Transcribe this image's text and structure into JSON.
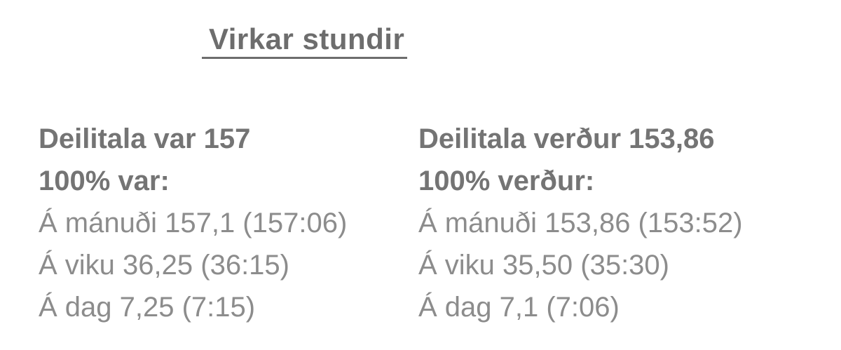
{
  "title": "Virkar stundir",
  "columns": [
    {
      "header": "Deilitala var 157",
      "subheader": "100% var:",
      "rows": [
        "Á mánuði 157,1 (157:06)",
        "Á viku 36,25 (36:15)",
        "Á dag 7,25 (7:15)"
      ]
    },
    {
      "header": "Deilitala verður 153,86",
      "subheader": "100% verður:",
      "rows": [
        "Á mánuði 153,86 (153:52)",
        "Á viku 35,50 (35:30)",
        "Á dag 7,1 (7:06)"
      ]
    }
  ],
  "colors": {
    "title": "#6d6d6d",
    "heading": "#747474",
    "body": "#8c8c8c",
    "background": "#ffffff"
  }
}
